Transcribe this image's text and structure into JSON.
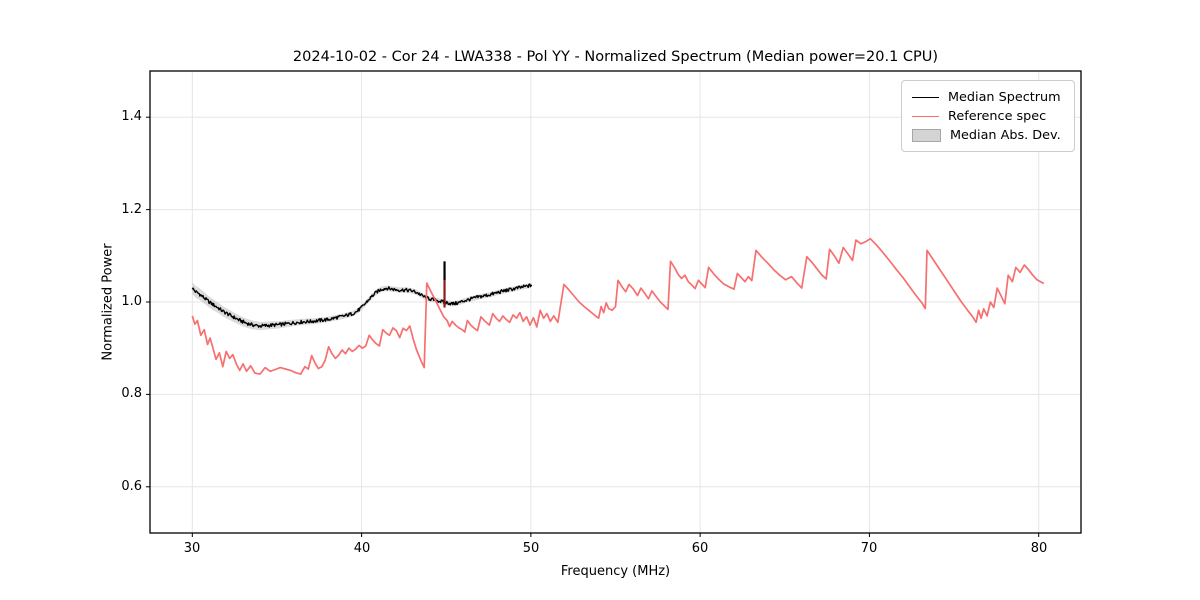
{
  "figure": {
    "background": "#ffffff"
  },
  "axes": {
    "x_ticks": [
      {
        "value": 30,
        "label": "30"
      },
      {
        "value": 40,
        "label": "40"
      },
      {
        "value": 50,
        "label": "50"
      },
      {
        "value": 60,
        "label": "60"
      },
      {
        "value": 70,
        "label": "70"
      },
      {
        "value": 80,
        "label": "80"
      }
    ],
    "y_ticks": [
      {
        "value": 1.4,
        "label": "1.4"
      },
      {
        "value": 1.2,
        "label": "1.2"
      },
      {
        "value": 1.0,
        "label": "1.0"
      },
      {
        "value": 0.8,
        "label": "0.8"
      },
      {
        "value": 0.6,
        "label": "0.6"
      }
    ],
    "grid_color": "#e6e6e6",
    "spine_color": "#000000",
    "grid_on": true
  },
  "legend": {
    "position": "upper-right",
    "items": [
      {
        "label": "Median Spectrum",
        "swatch": "line",
        "color": "#000000"
      },
      {
        "label": "Reference spec",
        "swatch": "line",
        "color": "#f76f6f"
      },
      {
        "label": "Median Abs. Dev.",
        "swatch": "patch",
        "color": "#d4d4d4",
        "edge": "#a6a6a6"
      }
    ]
  },
  "chart_data": {
    "type": "line",
    "title": "2024-10-02 - Cor 24 - LWA338 - Pol YY - Normalized Spectrum (Median power=20.1 CPU)",
    "xlabel": "Frequency (MHz)",
    "ylabel": "Normalized Power",
    "xlim": [
      27.5,
      82.5
    ],
    "ylim": [
      0.5,
      1.5
    ],
    "series": [
      {
        "name": "Median Spectrum",
        "color": "#000000",
        "width": 1.4,
        "noise_amplitude": 0.0038,
        "points": [
          [
            30.0,
            1.03
          ],
          [
            30.2,
            1.022
          ],
          [
            30.4,
            1.018
          ],
          [
            30.6,
            1.012
          ],
          [
            30.8,
            1.006
          ],
          [
            31.0,
            1.0
          ],
          [
            31.2,
            0.995
          ],
          [
            31.5,
            0.988
          ],
          [
            31.8,
            0.98
          ],
          [
            32.1,
            0.974
          ],
          [
            32.4,
            0.968
          ],
          [
            32.7,
            0.962
          ],
          [
            33.0,
            0.957
          ],
          [
            33.3,
            0.953
          ],
          [
            33.6,
            0.95
          ],
          [
            34.0,
            0.948
          ],
          [
            34.4,
            0.949
          ],
          [
            34.8,
            0.95
          ],
          [
            35.2,
            0.951
          ],
          [
            35.6,
            0.953
          ],
          [
            36.0,
            0.955
          ],
          [
            36.5,
            0.957
          ],
          [
            37.0,
            0.958
          ],
          [
            37.5,
            0.96
          ],
          [
            38.0,
            0.962
          ],
          [
            38.5,
            0.966
          ],
          [
            39.0,
            0.97
          ],
          [
            39.4,
            0.974
          ],
          [
            39.7,
            0.979
          ],
          [
            40.0,
            0.988
          ],
          [
            40.3,
            1.0
          ],
          [
            40.6,
            1.012
          ],
          [
            40.9,
            1.022
          ],
          [
            41.2,
            1.028
          ],
          [
            41.5,
            1.03
          ],
          [
            41.8,
            1.028
          ],
          [
            42.2,
            1.026
          ],
          [
            42.6,
            1.026
          ],
          [
            43.0,
            1.024
          ],
          [
            43.3,
            1.02
          ],
          [
            43.6,
            1.013
          ],
          [
            43.9,
            1.008
          ],
          [
            44.2,
            1.005
          ],
          [
            44.5,
            1.003
          ],
          [
            44.8,
            1.0
          ],
          [
            45.1,
            0.998
          ],
          [
            45.4,
            0.996
          ],
          [
            45.7,
            0.998
          ],
          [
            46.0,
            1.002
          ],
          [
            46.4,
            1.006
          ],
          [
            46.8,
            1.01
          ],
          [
            47.2,
            1.013
          ],
          [
            47.6,
            1.016
          ],
          [
            48.0,
            1.02
          ],
          [
            48.4,
            1.024
          ],
          [
            48.8,
            1.027
          ],
          [
            49.2,
            1.03
          ],
          [
            49.6,
            1.033
          ],
          [
            50.0,
            1.036
          ],
          [
            50.1,
            1.038
          ]
        ]
      },
      {
        "name": "Reference spec",
        "color": "#f76f6f",
        "width": 1.7,
        "points": [
          [
            30.0,
            0.97
          ],
          [
            30.15,
            0.952
          ],
          [
            30.3,
            0.96
          ],
          [
            30.5,
            0.928
          ],
          [
            30.7,
            0.94
          ],
          [
            30.9,
            0.908
          ],
          [
            31.05,
            0.922
          ],
          [
            31.2,
            0.903
          ],
          [
            31.4,
            0.876
          ],
          [
            31.6,
            0.89
          ],
          [
            31.8,
            0.86
          ],
          [
            32.0,
            0.893
          ],
          [
            32.2,
            0.878
          ],
          [
            32.4,
            0.886
          ],
          [
            32.6,
            0.866
          ],
          [
            32.8,
            0.852
          ],
          [
            33.0,
            0.866
          ],
          [
            33.2,
            0.85
          ],
          [
            33.45,
            0.862
          ],
          [
            33.7,
            0.846
          ],
          [
            34.0,
            0.844
          ],
          [
            34.3,
            0.858
          ],
          [
            34.6,
            0.85
          ],
          [
            34.9,
            0.854
          ],
          [
            35.2,
            0.858
          ],
          [
            35.5,
            0.855
          ],
          [
            35.8,
            0.852
          ],
          [
            36.1,
            0.847
          ],
          [
            36.4,
            0.844
          ],
          [
            36.65,
            0.86
          ],
          [
            36.85,
            0.855
          ],
          [
            37.05,
            0.884
          ],
          [
            37.25,
            0.868
          ],
          [
            37.45,
            0.856
          ],
          [
            37.65,
            0.86
          ],
          [
            37.85,
            0.874
          ],
          [
            38.05,
            0.903
          ],
          [
            38.25,
            0.888
          ],
          [
            38.45,
            0.878
          ],
          [
            38.65,
            0.885
          ],
          [
            38.85,
            0.896
          ],
          [
            39.05,
            0.888
          ],
          [
            39.25,
            0.9
          ],
          [
            39.45,
            0.893
          ],
          [
            39.65,
            0.898
          ],
          [
            39.85,
            0.906
          ],
          [
            40.05,
            0.9
          ],
          [
            40.25,
            0.905
          ],
          [
            40.45,
            0.928
          ],
          [
            40.65,
            0.918
          ],
          [
            40.85,
            0.91
          ],
          [
            41.05,
            0.905
          ],
          [
            41.25,
            0.94
          ],
          [
            41.45,
            0.933
          ],
          [
            41.65,
            0.928
          ],
          [
            41.85,
            0.944
          ],
          [
            42.05,
            0.938
          ],
          [
            42.25,
            0.923
          ],
          [
            42.45,
            0.943
          ],
          [
            42.65,
            0.938
          ],
          [
            42.85,
            0.948
          ],
          [
            43.05,
            0.92
          ],
          [
            43.25,
            0.896
          ],
          [
            43.5,
            0.874
          ],
          [
            43.7,
            0.858
          ],
          [
            43.85,
            1.041
          ],
          [
            44.1,
            1.022
          ],
          [
            44.35,
            1.005
          ],
          [
            44.6,
            0.986
          ],
          [
            44.85,
            0.968
          ],
          [
            45.05,
            0.96
          ],
          [
            45.2,
            0.947
          ],
          [
            45.35,
            0.958
          ],
          [
            45.55,
            0.95
          ],
          [
            45.75,
            0.944
          ],
          [
            45.95,
            0.94
          ],
          [
            46.1,
            0.935
          ],
          [
            46.25,
            0.96
          ],
          [
            46.45,
            0.95
          ],
          [
            46.65,
            0.943
          ],
          [
            46.85,
            0.938
          ],
          [
            47.05,
            0.968
          ],
          [
            47.3,
            0.958
          ],
          [
            47.55,
            0.95
          ],
          [
            47.75,
            0.975
          ],
          [
            47.95,
            0.965
          ],
          [
            48.15,
            0.958
          ],
          [
            48.35,
            0.97
          ],
          [
            48.55,
            0.962
          ],
          [
            48.75,
            0.956
          ],
          [
            48.95,
            0.972
          ],
          [
            49.15,
            0.965
          ],
          [
            49.35,
            0.977
          ],
          [
            49.55,
            0.958
          ],
          [
            49.75,
            0.968
          ],
          [
            49.95,
            0.95
          ],
          [
            50.15,
            0.966
          ],
          [
            50.35,
            0.946
          ],
          [
            50.55,
            0.982
          ],
          [
            50.75,
            0.965
          ],
          [
            50.95,
            0.975
          ],
          [
            51.15,
            0.958
          ],
          [
            51.35,
            0.97
          ],
          [
            51.6,
            0.956
          ],
          [
            51.95,
            1.038
          ],
          [
            52.25,
            1.026
          ],
          [
            52.55,
            1.013
          ],
          [
            52.85,
            1.0
          ],
          [
            53.15,
            0.99
          ],
          [
            53.45,
            0.981
          ],
          [
            53.75,
            0.972
          ],
          [
            54.0,
            0.965
          ],
          [
            54.15,
            0.99
          ],
          [
            54.3,
            0.977
          ],
          [
            54.45,
            0.998
          ],
          [
            54.6,
            0.986
          ],
          [
            54.8,
            0.982
          ],
          [
            55.0,
            0.99
          ],
          [
            55.15,
            1.047
          ],
          [
            55.4,
            1.032
          ],
          [
            55.6,
            1.022
          ],
          [
            55.8,
            1.038
          ],
          [
            56.05,
            1.028
          ],
          [
            56.3,
            1.014
          ],
          [
            56.5,
            1.03
          ],
          [
            56.7,
            1.02
          ],
          [
            56.95,
            1.007
          ],
          [
            57.15,
            1.024
          ],
          [
            57.4,
            1.012
          ],
          [
            57.65,
            1.0
          ],
          [
            57.9,
            0.991
          ],
          [
            58.1,
            0.984
          ],
          [
            58.25,
            1.088
          ],
          [
            58.5,
            1.074
          ],
          [
            58.7,
            1.06
          ],
          [
            58.9,
            1.051
          ],
          [
            59.1,
            1.058
          ],
          [
            59.3,
            1.044
          ],
          [
            59.5,
            1.037
          ],
          [
            59.7,
            1.029
          ],
          [
            59.9,
            1.047
          ],
          [
            60.1,
            1.039
          ],
          [
            60.3,
            1.031
          ],
          [
            60.5,
            1.075
          ],
          [
            60.8,
            1.061
          ],
          [
            61.1,
            1.049
          ],
          [
            61.4,
            1.039
          ],
          [
            61.7,
            1.033
          ],
          [
            62.0,
            1.028
          ],
          [
            62.2,
            1.062
          ],
          [
            62.45,
            1.052
          ],
          [
            62.65,
            1.044
          ],
          [
            62.85,
            1.055
          ],
          [
            63.05,
            1.046
          ],
          [
            63.3,
            1.112
          ],
          [
            63.65,
            1.097
          ],
          [
            64.0,
            1.084
          ],
          [
            64.35,
            1.07
          ],
          [
            64.7,
            1.058
          ],
          [
            65.05,
            1.048
          ],
          [
            65.4,
            1.055
          ],
          [
            65.7,
            1.042
          ],
          [
            66.0,
            1.03
          ],
          [
            66.3,
            1.098
          ],
          [
            66.6,
            1.086
          ],
          [
            66.9,
            1.072
          ],
          [
            67.2,
            1.058
          ],
          [
            67.45,
            1.05
          ],
          [
            67.65,
            1.114
          ],
          [
            67.95,
            1.099
          ],
          [
            68.2,
            1.084
          ],
          [
            68.45,
            1.118
          ],
          [
            68.75,
            1.103
          ],
          [
            69.0,
            1.09
          ],
          [
            69.2,
            1.134
          ],
          [
            69.5,
            1.126
          ],
          [
            69.8,
            1.131
          ],
          [
            70.05,
            1.137
          ],
          [
            70.4,
            1.124
          ],
          [
            70.8,
            1.107
          ],
          [
            71.2,
            1.089
          ],
          [
            71.6,
            1.07
          ],
          [
            72.0,
            1.052
          ],
          [
            72.4,
            1.032
          ],
          [
            72.8,
            1.012
          ],
          [
            73.1,
            0.998
          ],
          [
            73.3,
            0.986
          ],
          [
            73.4,
            1.112
          ],
          [
            73.8,
            1.09
          ],
          [
            74.2,
            1.068
          ],
          [
            74.6,
            1.046
          ],
          [
            75.0,
            1.024
          ],
          [
            75.4,
            1.002
          ],
          [
            75.8,
            0.982
          ],
          [
            76.1,
            0.968
          ],
          [
            76.3,
            0.956
          ],
          [
            76.45,
            0.982
          ],
          [
            76.6,
            0.965
          ],
          [
            76.75,
            0.985
          ],
          [
            76.95,
            0.97
          ],
          [
            77.15,
            1.0
          ],
          [
            77.35,
            0.988
          ],
          [
            77.55,
            1.03
          ],
          [
            77.8,
            1.012
          ],
          [
            78.0,
            0.996
          ],
          [
            78.2,
            1.058
          ],
          [
            78.45,
            1.044
          ],
          [
            78.65,
            1.075
          ],
          [
            78.9,
            1.064
          ],
          [
            79.15,
            1.08
          ],
          [
            79.4,
            1.07
          ],
          [
            79.65,
            1.058
          ],
          [
            79.9,
            1.048
          ],
          [
            80.3,
            1.04
          ]
        ]
      },
      {
        "name": "Median Abs. Dev.",
        "type": "band-around-series-0",
        "color": "#bfbfbf",
        "opacity": 0.55,
        "halfwidth_points": [
          [
            30.0,
            0.013
          ],
          [
            32.0,
            0.011
          ],
          [
            34.0,
            0.009
          ],
          [
            36.0,
            0.007
          ],
          [
            38.0,
            0.006
          ],
          [
            50.1,
            0.0055
          ]
        ]
      }
    ],
    "annotations": [
      {
        "type": "vline_segment",
        "x": 44.9,
        "y0": 0.988,
        "y1": 1.052,
        "color": "#8b1a1a",
        "width": 2.2
      },
      {
        "type": "vline_segment",
        "x": 44.9,
        "y0": 1.048,
        "y1": 1.088,
        "color": "#000000",
        "width": 2.2
      }
    ],
    "legend_position": "upper-right",
    "grid_on": true
  }
}
